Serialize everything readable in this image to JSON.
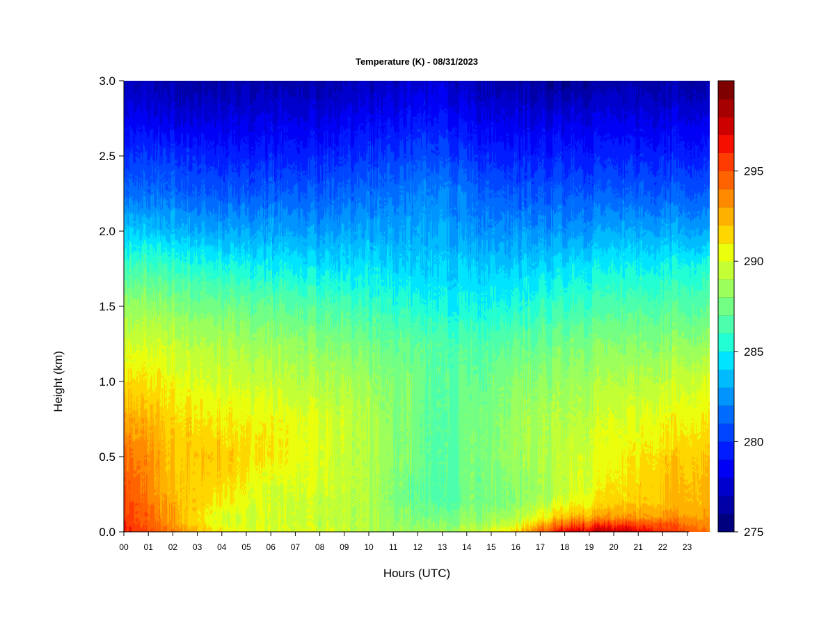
{
  "chart_data": {
    "type": "heatmap",
    "title": "Temperature (K) - 08/31/2023",
    "xlabel": "Hours (UTC)",
    "ylabel": "Height (km)",
    "xlim": [
      0,
      24
    ],
    "ylim": [
      0.0,
      3.0
    ],
    "x_ticks": [
      "00",
      "01",
      "02",
      "03",
      "04",
      "05",
      "06",
      "07",
      "08",
      "09",
      "10",
      "11",
      "12",
      "13",
      "14",
      "15",
      "16",
      "17",
      "18",
      "19",
      "20",
      "21",
      "22",
      "23"
    ],
    "y_ticks": [
      "0.0",
      "0.5",
      "1.0",
      "1.5",
      "2.0",
      "2.5",
      "3.0"
    ],
    "colorbar": {
      "range": [
        275,
        299
      ],
      "step": 1,
      "tick_labels": [
        "275",
        "280",
        "285",
        "290",
        "295"
      ],
      "colors": [
        "#00007f",
        "#0000a6",
        "#0000cd",
        "#0000f4",
        "#001cff",
        "#0044ff",
        "#006cff",
        "#0094ff",
        "#00bcff",
        "#00e4ff",
        "#23ffd4",
        "#4bffac",
        "#73ff84",
        "#9bff5c",
        "#c3ff34",
        "#ebff0c",
        "#ffd700",
        "#ffb100",
        "#ff8a00",
        "#ff6300",
        "#ff3c00",
        "#f40f00",
        "#cd0000",
        "#a60000",
        "#7f0000"
      ]
    },
    "x": [
      0,
      2,
      4,
      6,
      8,
      10,
      12,
      13,
      14,
      16,
      18,
      20,
      22,
      24
    ],
    "y": [
      0.0,
      0.05,
      0.1,
      0.2,
      0.3,
      0.5,
      0.75,
      1.0,
      1.25,
      1.5,
      1.75,
      2.0,
      2.25,
      2.5,
      2.75,
      3.0
    ],
    "z": [
      [
        296,
        294,
        291,
        290,
        290,
        289,
        288.5,
        288.5,
        289,
        292,
        297,
        298,
        296,
        294
      ],
      [
        296,
        293,
        290,
        290,
        289.5,
        289,
        288,
        288,
        288.5,
        290,
        294.5,
        295.5,
        295,
        293
      ],
      [
        295.5,
        293,
        290,
        290,
        289.5,
        289,
        287.5,
        287.5,
        288,
        289,
        292,
        293,
        293,
        293
      ],
      [
        295.5,
        292.5,
        291,
        290,
        289.5,
        289,
        287,
        286.5,
        287.5,
        288,
        290,
        291.5,
        292,
        292.5
      ],
      [
        295,
        292,
        291.5,
        290,
        290,
        289,
        287,
        286.5,
        287.5,
        288,
        289.5,
        291,
        292,
        292.5
      ],
      [
        294.5,
        292,
        292,
        291,
        290,
        289,
        287.5,
        286.5,
        287.5,
        288.5,
        289.5,
        290.5,
        291.5,
        292
      ],
      [
        293,
        291.5,
        291,
        290.5,
        290,
        289,
        287.5,
        286.5,
        287.5,
        288.5,
        289,
        290,
        290.5,
        291
      ],
      [
        291.5,
        290.5,
        290,
        289.5,
        289,
        288.5,
        287.5,
        286.5,
        287,
        288,
        288.5,
        289,
        289.5,
        290
      ],
      [
        290,
        289.5,
        289,
        288.5,
        288,
        287.5,
        287,
        286.5,
        286.5,
        287,
        287.5,
        288,
        288,
        288.5
      ],
      [
        288.5,
        288,
        287.5,
        287,
        286.5,
        286,
        285.5,
        285,
        285,
        285.5,
        286,
        286.5,
        286.5,
        287
      ],
      [
        286.5,
        286,
        285.5,
        285,
        284.5,
        284.5,
        284,
        284,
        284,
        284,
        284.5,
        285,
        285,
        285.5
      ],
      [
        284,
        283.5,
        283,
        283,
        282.5,
        283,
        283,
        283,
        282.5,
        282.5,
        282.5,
        283,
        283,
        283
      ],
      [
        281.5,
        281.5,
        281,
        281,
        281,
        281.5,
        282,
        282,
        281.5,
        281,
        281,
        281,
        281,
        281
      ],
      [
        280,
        280,
        279.5,
        279.5,
        279.5,
        280,
        280.5,
        280.5,
        280,
        279.5,
        279.5,
        279.5,
        279.5,
        279.5
      ],
      [
        278.5,
        278,
        278,
        278,
        278,
        278.5,
        279,
        279,
        278.5,
        278,
        278,
        278,
        278,
        278
      ],
      [
        277,
        276.5,
        276.5,
        276.5,
        276.5,
        277,
        277.5,
        277.5,
        277,
        276.5,
        276,
        276.5,
        276.5,
        276.5
      ]
    ]
  }
}
